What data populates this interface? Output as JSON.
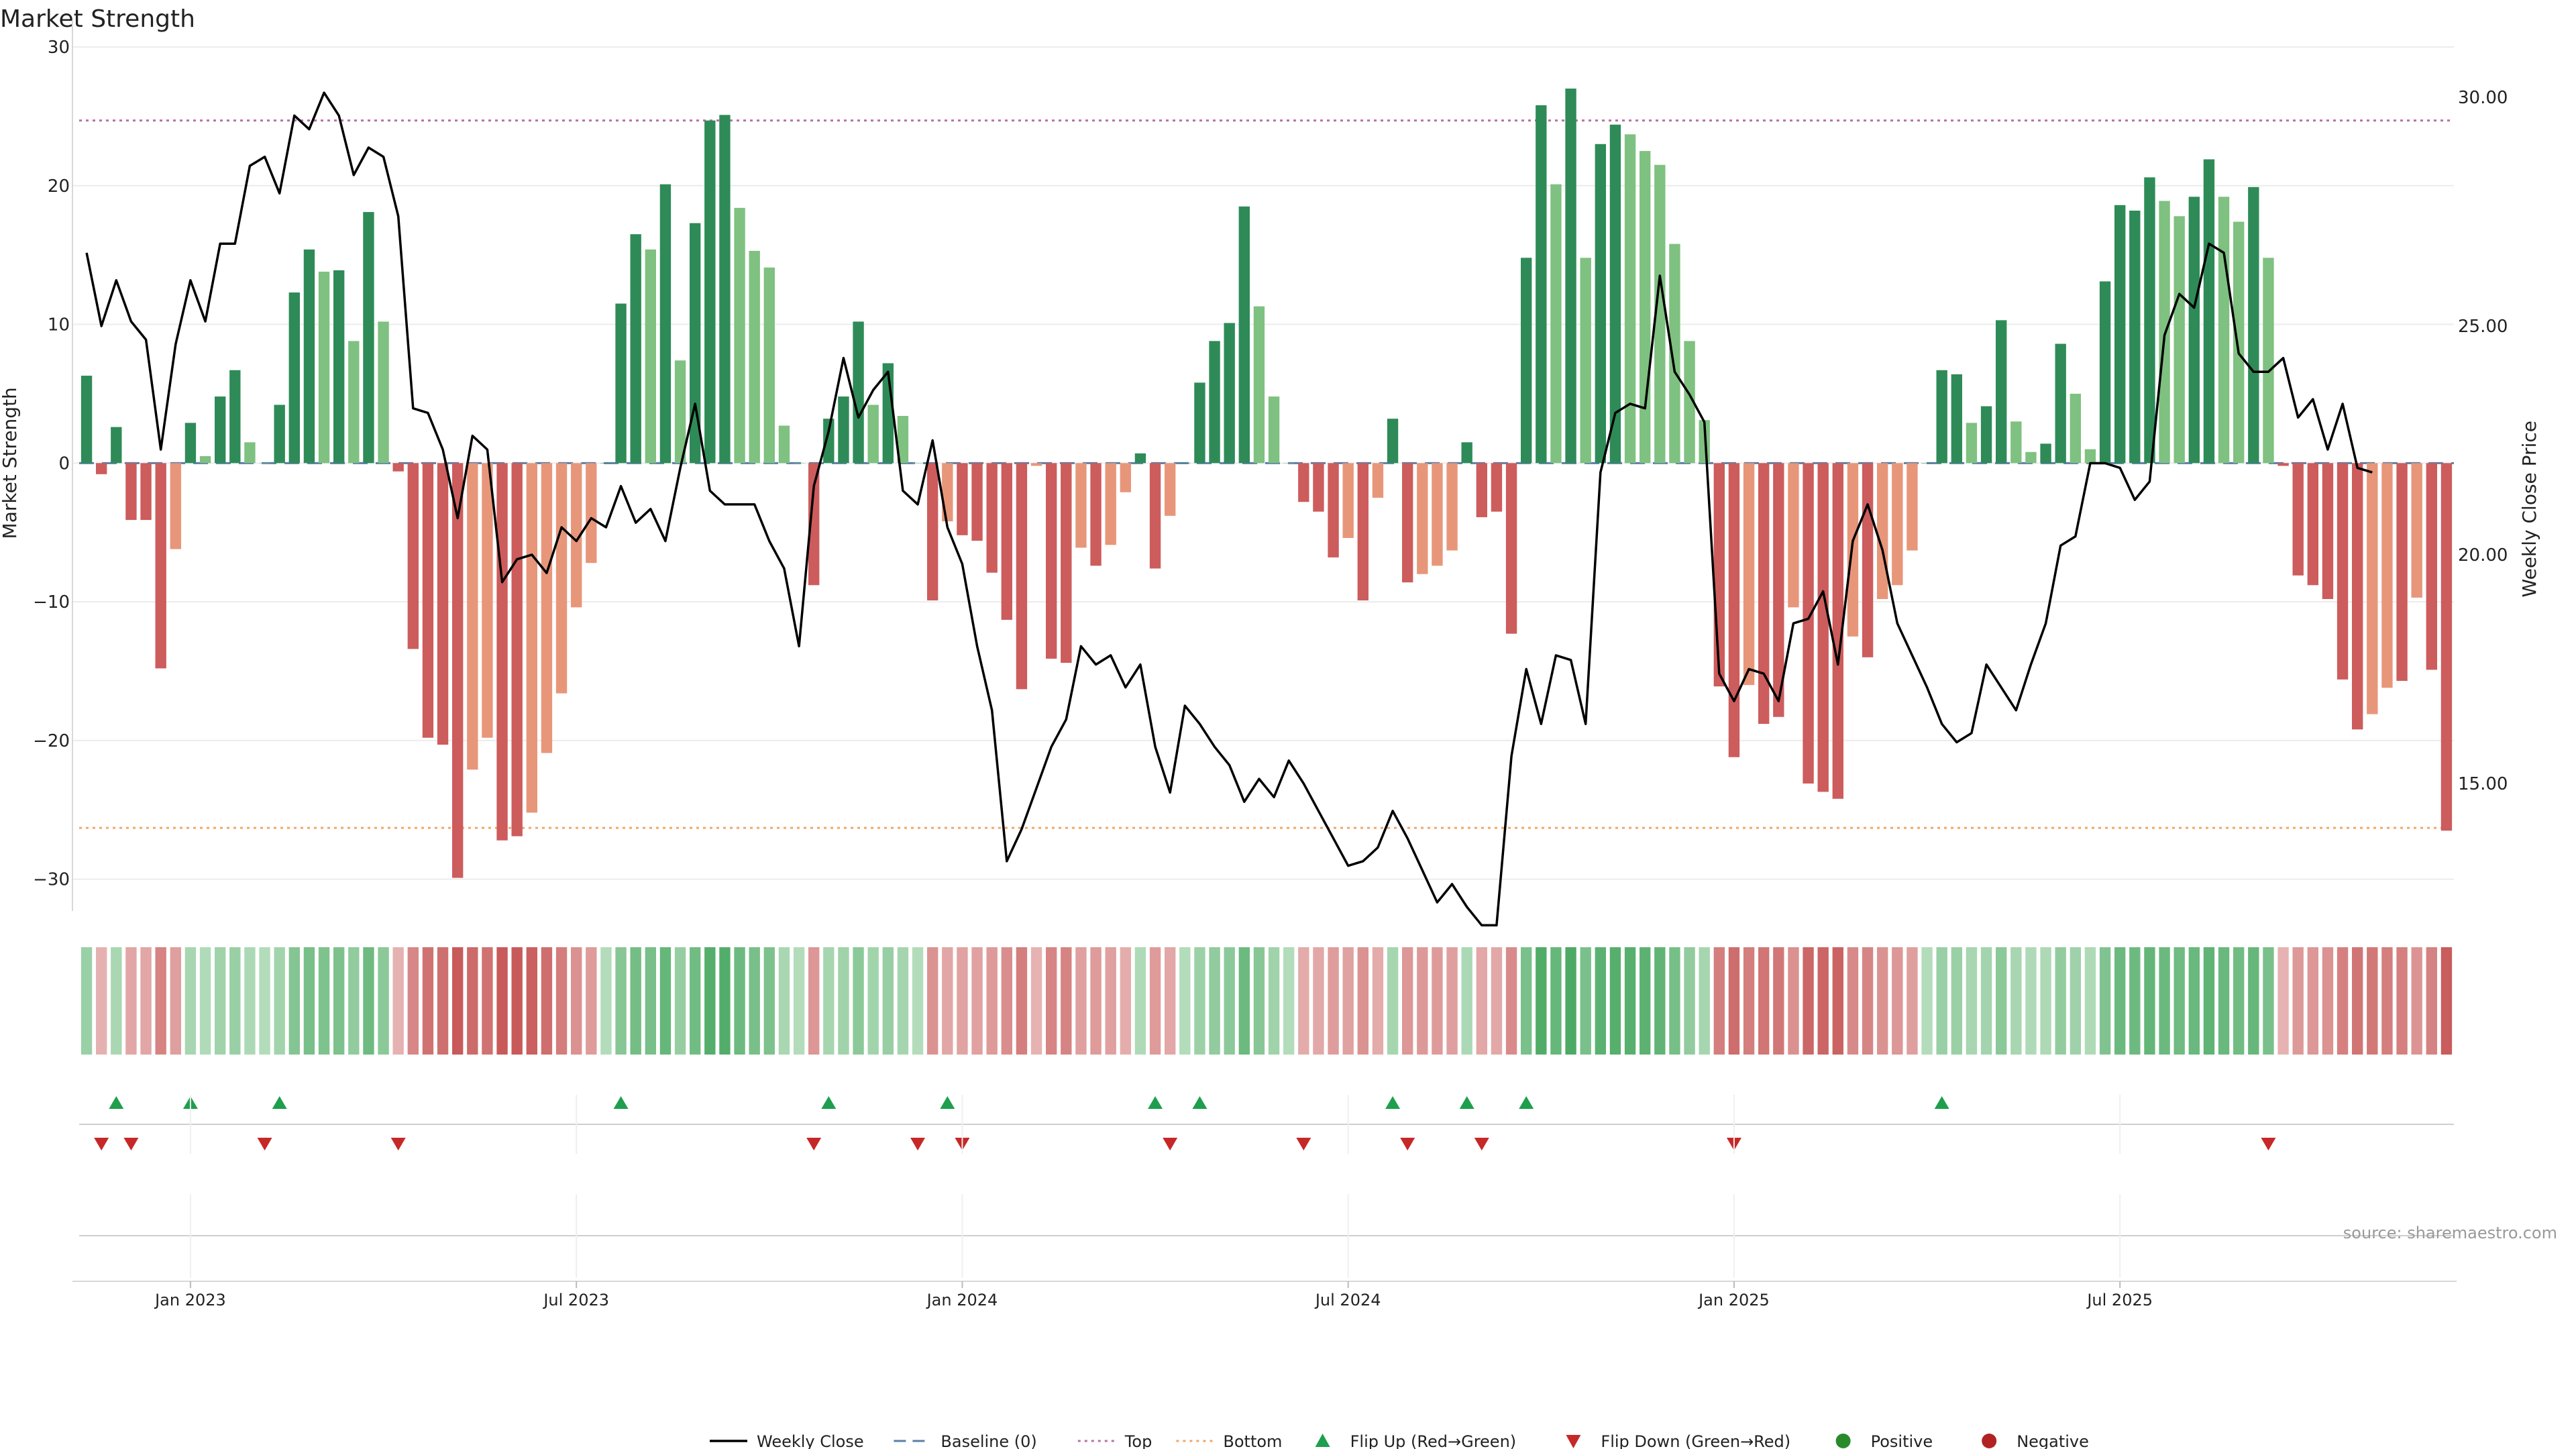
{
  "chart_data": {
    "type": "bar",
    "title": "Market Strength",
    "ylabel": "Market Strength",
    "y2label": "Weekly Close Price",
    "ylim": [
      -32,
      30
    ],
    "y2lim": [
      12.3,
      31.1
    ],
    "yticks": [
      "30",
      "20",
      "10",
      "0",
      "−10",
      "−20",
      "−30"
    ],
    "yticks_values": [
      30,
      20,
      10,
      0,
      -10,
      -20,
      -30
    ],
    "y2ticks": [
      "30.00",
      "25.00",
      "20.00",
      "15.00"
    ],
    "y2ticks_values": [
      30,
      25,
      20,
      15
    ],
    "xticks": [
      "Jan 2023",
      "Jul 2023",
      "Jan 2024",
      "Jul 2024",
      "Jan 2025",
      "Jul 2025"
    ],
    "xticks_week_index": [
      7,
      33,
      59,
      85,
      111,
      137
    ],
    "top_level": 24.7,
    "bottom_level": -26.3,
    "source": "source: sharemaestro.com",
    "series": [
      {
        "name": "Market Strength",
        "values": [
          6.3,
          -0.8,
          2.6,
          -4.1,
          -4.1,
          -14.8,
          -6.2,
          2.9,
          0.5,
          4.8,
          6.7,
          1.5,
          0,
          4.2,
          12.3,
          15.4,
          13.8,
          13.9,
          8.8,
          18.1,
          10.2,
          -0.6,
          -13.4,
          -19.8,
          -20.3,
          -29.9,
          -22.1,
          -19.8,
          -27.2,
          -26.9,
          -25.2,
          -20.9,
          -16.6,
          -10.4,
          -7.2,
          0,
          11.5,
          16.5,
          15.4,
          20.1,
          7.4,
          17.3,
          24.7,
          25.1,
          18.4,
          15.3,
          14.1,
          2.7,
          0,
          -8.8,
          3.2,
          4.8,
          10.2,
          4.2,
          7.2,
          3.4,
          0,
          -9.9,
          -4.2,
          -5.2,
          -5.6,
          -7.9,
          -11.3,
          -16.3,
          -0.2,
          -14.1,
          -14.4,
          -6.1,
          -7.4,
          -5.9,
          -2.1,
          0.7,
          -7.6,
          -3.8,
          0,
          5.8,
          8.8,
          10.1,
          18.5,
          11.3,
          4.8,
          0,
          -2.8,
          -3.5,
          -6.8,
          -5.4,
          -9.9,
          -2.5,
          3.2,
          -8.6,
          -8.0,
          -7.4,
          -6.3,
          1.5,
          -3.9,
          -3.5,
          -12.3,
          14.8,
          25.8,
          20.1,
          27.0,
          14.8,
          23.0,
          24.4,
          23.7,
          22.5,
          21.5,
          15.8,
          8.8,
          3.1,
          -16.1,
          -21.2,
          -16.0,
          -18.8,
          -18.3,
          -10.4,
          -23.1,
          -23.7,
          -24.2,
          -12.5,
          -14.0,
          -9.8,
          -8.8,
          -6.3,
          0,
          6.7,
          6.4,
          2.9,
          4.1,
          10.3,
          3.0,
          0.8,
          1.4,
          8.6,
          5.0,
          1.0,
          13.1,
          18.6,
          18.2,
          20.6,
          18.9,
          17.8,
          19.2,
          21.9,
          19.2,
          17.4,
          19.9,
          14.8,
          -0.2,
          -8.1,
          -8.8,
          -9.8,
          -15.6,
          -19.2,
          -18.1,
          -16.2,
          -15.7,
          -9.7,
          -14.9,
          -26.5
        ]
      },
      {
        "name": "Weekly Close",
        "values": [
          26.6,
          25.0,
          26.0,
          25.1,
          24.7,
          22.3,
          24.6,
          26.0,
          25.1,
          26.8,
          26.8,
          28.5,
          28.7,
          27.9,
          29.6,
          29.3,
          30.1,
          29.6,
          28.3,
          28.9,
          28.7,
          27.4,
          23.2,
          23.1,
          22.3,
          20.8,
          22.6,
          22.3,
          19.4,
          19.9,
          20.0,
          19.6,
          20.6,
          20.3,
          20.8,
          20.6,
          21.5,
          20.7,
          21.0,
          20.3,
          21.9,
          23.3,
          21.4,
          21.1,
          21.1,
          21.1,
          20.3,
          19.7,
          18.0,
          21.5,
          22.7,
          24.3,
          23.0,
          23.6,
          24.0,
          21.4,
          21.1,
          22.5,
          20.6,
          19.8,
          18.0,
          16.6,
          13.3,
          14.0,
          14.9,
          15.8,
          16.4,
          18.0,
          17.6,
          17.8,
          17.1,
          17.6,
          15.8,
          14.8,
          16.7,
          16.3,
          15.8,
          15.4,
          14.6,
          15.1,
          14.7,
          15.5,
          15.0,
          14.4,
          13.8,
          13.2,
          13.3,
          13.6,
          14.4,
          13.8,
          13.1,
          12.4,
          12.8,
          12.3,
          11.9,
          11.9,
          15.6,
          17.5,
          16.3,
          17.8,
          17.7,
          16.3,
          21.8,
          23.1,
          23.3,
          23.2,
          26.1,
          24.0,
          23.5,
          22.9,
          17.4,
          16.8,
          17.5,
          17.4,
          16.8,
          18.5,
          18.6,
          19.2,
          17.6,
          20.3,
          21.1,
          20.1,
          18.5,
          17.8,
          17.1,
          16.3,
          15.9,
          16.1,
          17.6,
          17.1,
          16.6,
          17.6,
          18.5,
          20.2,
          20.4,
          22.0,
          22.0,
          21.9,
          21.2,
          21.6,
          24.8,
          25.7,
          25.4,
          26.8,
          26.6,
          24.4,
          24.0,
          24.0,
          24.3,
          23.0,
          23.4,
          22.3,
          23.3,
          21.9,
          21.8
        ],
        "colors": {
          "line": "#000000"
        }
      }
    ],
    "flip_up_weeks": [
      2,
      7,
      13,
      36,
      50,
      58,
      72,
      75,
      88,
      93,
      97,
      125
    ],
    "flip_down_weeks": [
      1,
      3,
      12,
      21,
      49,
      56,
      59,
      73,
      82,
      89,
      94,
      111,
      147
    ],
    "colors": {
      "strong_pos": "#2e8b57",
      "mid_pos": "#41a766",
      "light_pos": "#7fc180",
      "strong_neg": "#cd5c5c",
      "light_neg": "#e8967a",
      "top_line": "#b8739e",
      "bottom_line": "#f2a766",
      "baseline": "#5a7fa8",
      "flip_up": "#1e9f4d",
      "flip_down": "#c62828",
      "positive": "#2a8a2a",
      "negative": "#b22222",
      "grid": "#ececec",
      "axis": "#d8d8d8",
      "text": "#222222",
      "source_text": "#999999"
    },
    "legend": [
      {
        "label": "Weekly Close",
        "kind": "line"
      },
      {
        "label": "Baseline (0)",
        "kind": "dash"
      },
      {
        "label": "Top",
        "kind": "dotted-purple"
      },
      {
        "label": "Bottom",
        "kind": "dotted-orange"
      },
      {
        "label": "Flip Up (Red→Green)",
        "kind": "triangle-up"
      },
      {
        "label": "Flip Down (Green→Red)",
        "kind": "triangle-down"
      },
      {
        "label": "Positive",
        "kind": "dot-green"
      },
      {
        "label": "Negative",
        "kind": "dot-red"
      }
    ]
  }
}
